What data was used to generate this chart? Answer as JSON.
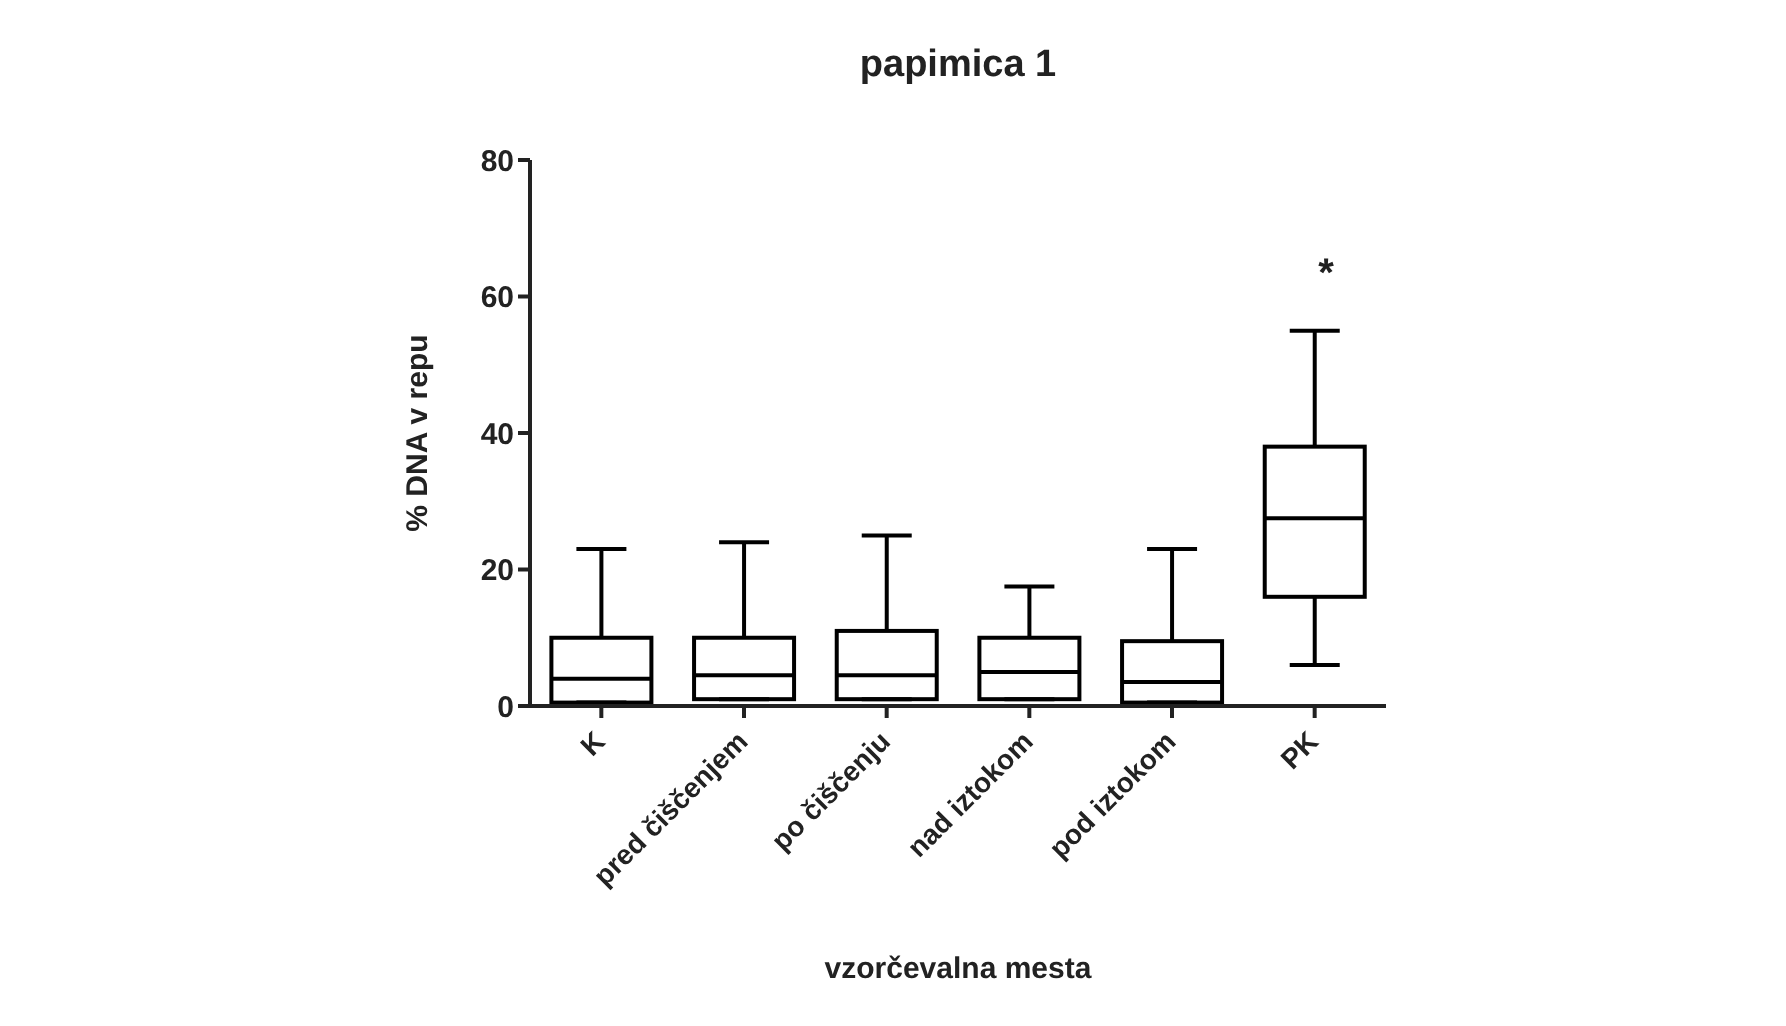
{
  "chart_data": {
    "type": "box",
    "title": "papimica 1",
    "xlabel": "vzorčevalna mesta",
    "ylabel": "% DNA v repu",
    "categories": [
      "K",
      "pred čiščenjem",
      "po čiščenju",
      "nad iztokom",
      "pod iztokom",
      "PK"
    ],
    "boxes": [
      {
        "low": 0.5,
        "q1": 0.5,
        "median": 4,
        "q3": 10,
        "high": 23
      },
      {
        "low": 1,
        "q1": 1,
        "median": 4.5,
        "q3": 10,
        "high": 24
      },
      {
        "low": 1,
        "q1": 1,
        "median": 4.5,
        "q3": 11,
        "high": 25
      },
      {
        "low": 1,
        "q1": 1,
        "median": 5,
        "q3": 10,
        "high": 17.5
      },
      {
        "low": 0.5,
        "q1": 0.5,
        "median": 3.5,
        "q3": 9.5,
        "high": 23
      },
      {
        "low": 6,
        "q1": 16,
        "median": 27.5,
        "q3": 38,
        "high": 55
      }
    ],
    "color": "#000000",
    "ylim": [
      0,
      80
    ],
    "yticks": [
      0,
      20,
      40,
      60,
      80
    ],
    "grid": false,
    "annotations": [
      "*"
    ]
  }
}
